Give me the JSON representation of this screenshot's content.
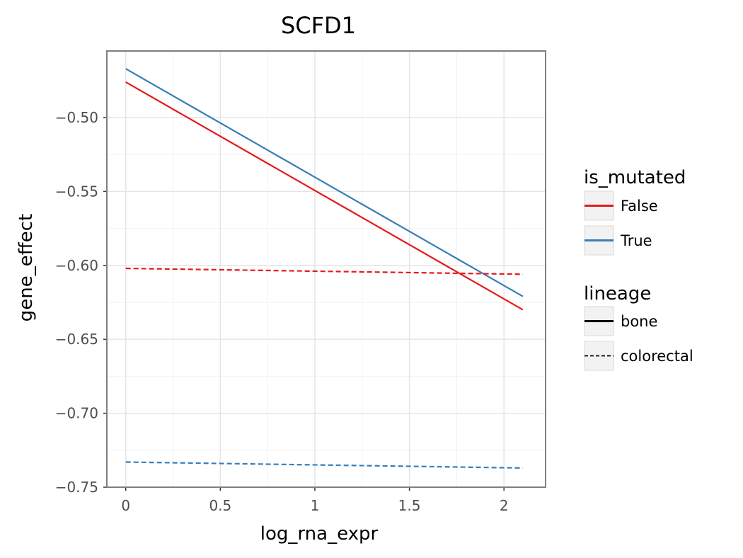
{
  "chart_data": {
    "type": "line",
    "title": "SCFD1",
    "xlabel": "log_rna_expr",
    "ylabel": "gene_effect",
    "xlim": [
      -0.1,
      2.22
    ],
    "ylim": [
      -0.75,
      -0.455
    ],
    "x_ticks": [
      0,
      0.5,
      1,
      1.5,
      2
    ],
    "x_tick_labels": [
      "0",
      "0.5",
      "1",
      "1.5",
      "2"
    ],
    "y_ticks": [
      -0.5,
      -0.55,
      -0.6,
      -0.65,
      -0.7,
      -0.75
    ],
    "y_tick_labels": [
      "−0.50",
      "−0.55",
      "−0.60",
      "−0.65",
      "−0.70",
      "−0.75"
    ],
    "grid": true,
    "legend_position": "right",
    "series": [
      {
        "is_mutated": "False",
        "lineage": "bone",
        "color": "#e41a1c",
        "linetype": "solid",
        "x": [
          0,
          2.1
        ],
        "y": [
          -0.476,
          -0.63
        ]
      },
      {
        "is_mutated": "True",
        "lineage": "bone",
        "color": "#377eb8",
        "linetype": "solid",
        "x": [
          0,
          2.1
        ],
        "y": [
          -0.467,
          -0.621
        ]
      },
      {
        "is_mutated": "False",
        "lineage": "colorectal",
        "color": "#e41a1c",
        "linetype": "dashed",
        "x": [
          0,
          2.1
        ],
        "y": [
          -0.602,
          -0.606
        ]
      },
      {
        "is_mutated": "True",
        "lineage": "colorectal",
        "color": "#377eb8",
        "linetype": "dashed",
        "x": [
          0,
          2.1
        ],
        "y": [
          -0.733,
          -0.737
        ]
      }
    ],
    "legend": {
      "color": {
        "title": "is_mutated",
        "items": [
          {
            "label": "False",
            "color": "#e41a1c"
          },
          {
            "label": "True",
            "color": "#377eb8"
          }
        ]
      },
      "linetype": {
        "title": "lineage",
        "items": [
          {
            "label": "bone",
            "linetype": "solid"
          },
          {
            "label": "colorectal",
            "linetype": "dashed"
          }
        ]
      }
    }
  }
}
